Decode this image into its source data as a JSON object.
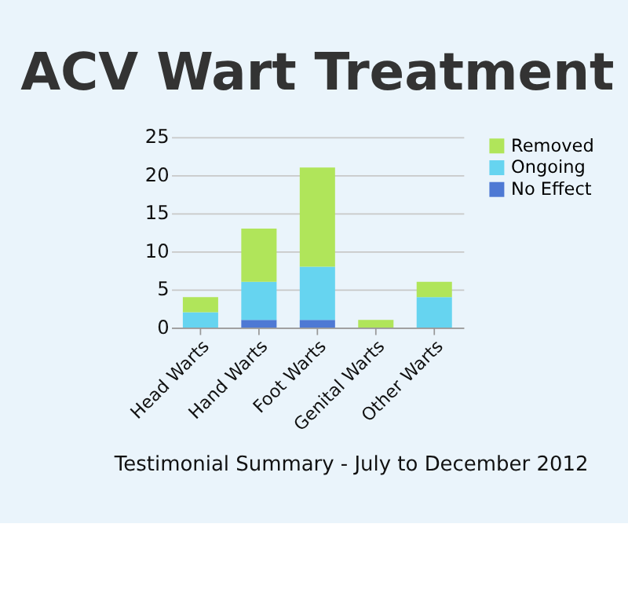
{
  "chart_data": {
    "type": "bar",
    "title": "ACV Wart Treatment",
    "stacked": true,
    "categories": [
      "Head Warts",
      "Hand Warts",
      "Foot Warts",
      "Genital Warts",
      "Other Warts"
    ],
    "series": [
      {
        "name": "No Effect",
        "color": "#4e79d4",
        "values": [
          0,
          1,
          1,
          0,
          0
        ]
      },
      {
        "name": "Ongoing",
        "color": "#66d4f0",
        "values": [
          2,
          5,
          7,
          0,
          4
        ]
      },
      {
        "name": "Removed",
        "color": "#b0e55a",
        "values": [
          2,
          7,
          13,
          1,
          2
        ]
      }
    ],
    "ylim": [
      0,
      25
    ],
    "yticks": [
      0,
      5,
      10,
      15,
      20,
      25
    ],
    "grid": "y",
    "legend": "right",
    "annotations": [
      "Testimonial Summary - July to December 2012"
    ]
  }
}
